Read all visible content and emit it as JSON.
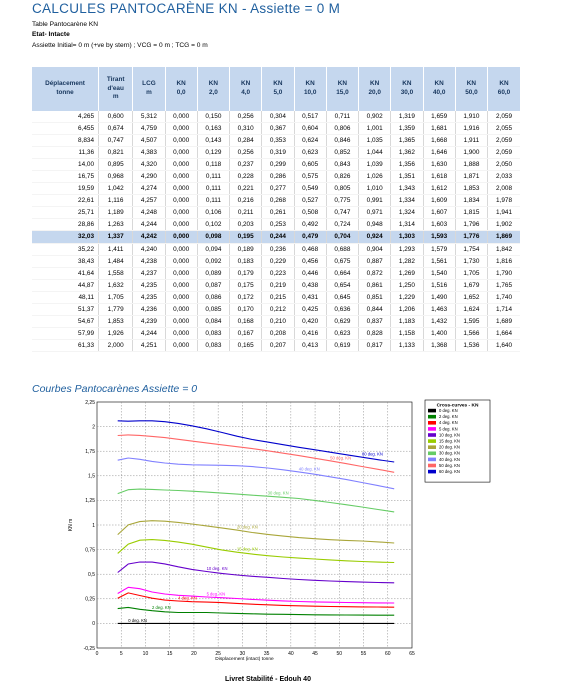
{
  "page": {
    "title": "CALCULES PANTOCARÈNE KN - Assiette = 0 M",
    "subtitle": "Table Pantocarène KN",
    "condition": "Etat- Intacte",
    "initial": "Assiette Initial= 0 m (+ve by stern) ; VCG = 0 m ; TCG = 0 m",
    "section_title": "Courbes Pantocarènes Assiette = 0",
    "footer": "Livret Stabilité - Edouh 40"
  },
  "table": {
    "headers": [
      [
        "Déplacement",
        "tonne"
      ],
      [
        "Tirant",
        "d'eau",
        "m"
      ],
      [
        "LCG",
        "m"
      ],
      [
        "KN",
        "0,0"
      ],
      [
        "KN",
        "2,0"
      ],
      [
        "KN",
        "4,0"
      ],
      [
        "KN",
        "5,0"
      ],
      [
        "KN",
        "10,0"
      ],
      [
        "KN",
        "15,0"
      ],
      [
        "KN",
        "20,0"
      ],
      [
        "KN",
        "30,0"
      ],
      [
        "KN",
        "40,0"
      ],
      [
        "KN",
        "50,0"
      ],
      [
        "KN",
        "60,0"
      ]
    ],
    "rows": [
      [
        "4,265",
        "0,600",
        "5,312",
        "0,000",
        "0,150",
        "0,256",
        "0,304",
        "0,517",
        "0,711",
        "0,902",
        "1,319",
        "1,659",
        "1,910",
        "2,059"
      ],
      [
        "6,455",
        "0,674",
        "4,759",
        "0,000",
        "0,163",
        "0,310",
        "0,367",
        "0,604",
        "0,806",
        "1,001",
        "1,359",
        "1,681",
        "1,916",
        "2,055"
      ],
      [
        "8,834",
        "0,747",
        "4,507",
        "0,000",
        "0,143",
        "0,284",
        "0,353",
        "0,624",
        "0,846",
        "1,035",
        "1,365",
        "1,668",
        "1,911",
        "2,059"
      ],
      [
        "11,36",
        "0,821",
        "4,383",
        "0,000",
        "0,129",
        "0,256",
        "0,319",
        "0,623",
        "0,852",
        "1,044",
        "1,362",
        "1,646",
        "1,900",
        "2,059"
      ],
      [
        "14,00",
        "0,895",
        "4,320",
        "0,000",
        "0,118",
        "0,237",
        "0,299",
        "0,605",
        "0,843",
        "1,039",
        "1,356",
        "1,630",
        "1,888",
        "2,050"
      ],
      [
        "16,75",
        "0,968",
        "4,290",
        "0,000",
        "0,111",
        "0,228",
        "0,286",
        "0,575",
        "0,826",
        "1,026",
        "1,351",
        "1,618",
        "1,871",
        "2,033"
      ],
      [
        "19,59",
        "1,042",
        "4,274",
        "0,000",
        "0,111",
        "0,221",
        "0,277",
        "0,549",
        "0,805",
        "1,010",
        "1,343",
        "1,612",
        "1,853",
        "2,008"
      ],
      [
        "22,61",
        "1,116",
        "4,257",
        "0,000",
        "0,111",
        "0,216",
        "0,268",
        "0,527",
        "0,775",
        "0,991",
        "1,334",
        "1,609",
        "1,834",
        "1,978"
      ],
      [
        "25,71",
        "1,189",
        "4,248",
        "0,000",
        "0,106",
        "0,211",
        "0,261",
        "0,508",
        "0,747",
        "0,971",
        "1,324",
        "1,607",
        "1,815",
        "1,941"
      ],
      [
        "28,86",
        "1,263",
        "4,244",
        "0,000",
        "0,102",
        "0,203",
        "0,253",
        "0,492",
        "0,724",
        "0,948",
        "1,314",
        "1,603",
        "1,796",
        "1,902"
      ],
      [
        "32,03",
        "1,337",
        "4,242",
        "0,000",
        "0,098",
        "0,195",
        "0,244",
        "0,479",
        "0,704",
        "0,924",
        "1,303",
        "1,593",
        "1,776",
        "1,869"
      ],
      [
        "35,22",
        "1,411",
        "4,240",
        "0,000",
        "0,094",
        "0,189",
        "0,236",
        "0,468",
        "0,688",
        "0,904",
        "1,293",
        "1,579",
        "1,754",
        "1,842"
      ],
      [
        "38,43",
        "1,484",
        "4,238",
        "0,000",
        "0,092",
        "0,183",
        "0,229",
        "0,456",
        "0,675",
        "0,887",
        "1,282",
        "1,561",
        "1,730",
        "1,816"
      ],
      [
        "41,64",
        "1,558",
        "4,237",
        "0,000",
        "0,089",
        "0,179",
        "0,223",
        "0,446",
        "0,664",
        "0,872",
        "1,269",
        "1,540",
        "1,705",
        "1,790"
      ],
      [
        "44,87",
        "1,632",
        "4,235",
        "0,000",
        "0,087",
        "0,175",
        "0,219",
        "0,438",
        "0,654",
        "0,861",
        "1,250",
        "1,516",
        "1,679",
        "1,765"
      ],
      [
        "48,11",
        "1,705",
        "4,235",
        "0,000",
        "0,086",
        "0,172",
        "0,215",
        "0,431",
        "0,645",
        "0,851",
        "1,229",
        "1,490",
        "1,652",
        "1,740"
      ],
      [
        "51,37",
        "1,779",
        "4,236",
        "0,000",
        "0,085",
        "0,170",
        "0,212",
        "0,425",
        "0,636",
        "0,844",
        "1,206",
        "1,463",
        "1,624",
        "1,714"
      ],
      [
        "54,67",
        "1,853",
        "4,239",
        "0,000",
        "0,084",
        "0,168",
        "0,210",
        "0,420",
        "0,629",
        "0,837",
        "1,183",
        "1,432",
        "1,595",
        "1,689"
      ],
      [
        "57,99",
        "1,926",
        "4,244",
        "0,000",
        "0,083",
        "0,167",
        "0,208",
        "0,416",
        "0,623",
        "0,828",
        "1,158",
        "1,400",
        "1,566",
        "1,664"
      ],
      [
        "61,33",
        "2,000",
        "4,251",
        "0,000",
        "0,083",
        "0,165",
        "0,207",
        "0,413",
        "0,619",
        "0,817",
        "1,133",
        "1,368",
        "1,536",
        "1,640"
      ]
    ],
    "highlight_row": 10
  },
  "chart_data": {
    "type": "line",
    "title": "",
    "xlabel": "Displacement (intact) tonne",
    "ylabel": "KN m",
    "xlim": [
      0,
      65
    ],
    "ylim": [
      -0.25,
      2.25
    ],
    "xticks": [
      "0",
      "5",
      "10",
      "15",
      "20",
      "25",
      "30",
      "35",
      "40",
      "45",
      "50",
      "55",
      "60",
      "65"
    ],
    "yticks": [
      "-0,25",
      "0",
      "0,25",
      "0,5",
      "0,75",
      "1",
      "1,25",
      "1,5",
      "1,75",
      "2",
      "2,25"
    ],
    "grid": true,
    "legend": {
      "title": "Cross-curves - KN",
      "position": "right"
    },
    "x": [
      4.265,
      6.455,
      8.834,
      11.36,
      14.0,
      16.75,
      19.59,
      22.61,
      25.71,
      28.86,
      32.03,
      35.22,
      38.43,
      41.64,
      44.87,
      48.11,
      51.37,
      54.67,
      57.99,
      61.33
    ],
    "series": [
      {
        "name": "0 deg. KN",
        "label": "0 deg. KN",
        "color": "#000000",
        "values": [
          0,
          0,
          0,
          0,
          0,
          0,
          0,
          0,
          0,
          0,
          0,
          0,
          0,
          0,
          0,
          0,
          0,
          0,
          0,
          0
        ]
      },
      {
        "name": "2 deg. KN",
        "label": "2 deg. KN",
        "color": "#008000",
        "values": [
          0.15,
          0.163,
          0.143,
          0.129,
          0.118,
          0.111,
          0.111,
          0.111,
          0.106,
          0.102,
          0.098,
          0.094,
          0.092,
          0.089,
          0.087,
          0.086,
          0.085,
          0.084,
          0.083,
          0.083
        ]
      },
      {
        "name": "4 deg. KN",
        "label": "4 deg. KN",
        "color": "#ff0000",
        "values": [
          0.256,
          0.31,
          0.284,
          0.256,
          0.237,
          0.228,
          0.221,
          0.216,
          0.211,
          0.203,
          0.195,
          0.189,
          0.183,
          0.179,
          0.175,
          0.172,
          0.17,
          0.168,
          0.167,
          0.165
        ]
      },
      {
        "name": "5 deg. KN",
        "label": "5 deg. KN",
        "color": "#ff00ff",
        "values": [
          0.304,
          0.367,
          0.353,
          0.319,
          0.299,
          0.286,
          0.277,
          0.268,
          0.261,
          0.253,
          0.244,
          0.236,
          0.229,
          0.223,
          0.219,
          0.215,
          0.212,
          0.21,
          0.208,
          0.207
        ]
      },
      {
        "name": "10 deg. KN",
        "label": "10 deg. KN",
        "color": "#6600cc",
        "values": [
          0.517,
          0.604,
          0.624,
          0.623,
          0.605,
          0.575,
          0.549,
          0.527,
          0.508,
          0.492,
          0.479,
          0.468,
          0.456,
          0.446,
          0.438,
          0.431,
          0.425,
          0.42,
          0.416,
          0.413
        ]
      },
      {
        "name": "15 deg. KN",
        "label": "15 deg. KN",
        "color": "#99cc00",
        "values": [
          0.711,
          0.806,
          0.846,
          0.852,
          0.843,
          0.826,
          0.805,
          0.775,
          0.747,
          0.724,
          0.704,
          0.688,
          0.675,
          0.664,
          0.654,
          0.645,
          0.636,
          0.629,
          0.623,
          0.619
        ]
      },
      {
        "name": "20 deg. KN",
        "label": "20 deg. KN",
        "color": "#a9a63a",
        "values": [
          0.902,
          1.001,
          1.035,
          1.044,
          1.039,
          1.026,
          1.01,
          0.991,
          0.971,
          0.948,
          0.924,
          0.904,
          0.887,
          0.872,
          0.861,
          0.851,
          0.844,
          0.837,
          0.828,
          0.817
        ]
      },
      {
        "name": "30 deg. KN",
        "label": "30 deg. KN",
        "color": "#66cc66",
        "values": [
          1.319,
          1.359,
          1.365,
          1.362,
          1.356,
          1.351,
          1.343,
          1.334,
          1.324,
          1.314,
          1.303,
          1.293,
          1.282,
          1.269,
          1.25,
          1.229,
          1.206,
          1.183,
          1.158,
          1.133
        ]
      },
      {
        "name": "40 deg. KN",
        "label": "40 deg. KN",
        "color": "#8080ff",
        "values": [
          1.659,
          1.681,
          1.668,
          1.646,
          1.63,
          1.618,
          1.612,
          1.609,
          1.607,
          1.603,
          1.593,
          1.579,
          1.561,
          1.54,
          1.516,
          1.49,
          1.463,
          1.432,
          1.4,
          1.368
        ]
      },
      {
        "name": "50 deg. KN",
        "label": "50 deg. KN",
        "color": "#ff6666",
        "values": [
          1.91,
          1.916,
          1.911,
          1.9,
          1.888,
          1.871,
          1.853,
          1.834,
          1.815,
          1.796,
          1.776,
          1.754,
          1.73,
          1.705,
          1.679,
          1.652,
          1.624,
          1.595,
          1.566,
          1.536
        ]
      },
      {
        "name": "60 deg. KN",
        "label": "60 deg. KN",
        "color": "#0000cc",
        "values": [
          2.059,
          2.055,
          2.059,
          2.059,
          2.05,
          2.033,
          2.008,
          1.978,
          1.941,
          1.902,
          1.869,
          1.842,
          1.816,
          1.79,
          1.765,
          1.74,
          1.714,
          1.689,
          1.664,
          1.64
        ]
      }
    ]
  }
}
